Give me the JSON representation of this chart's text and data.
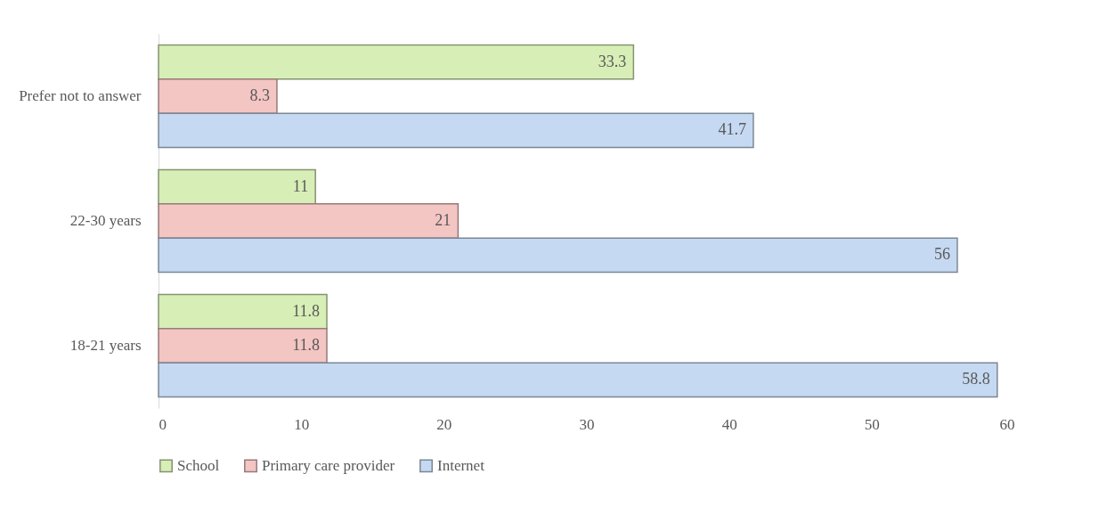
{
  "chart_data": {
    "type": "bar",
    "orientation": "horizontal",
    "categories": [
      "Prefer not to answer",
      "22-30 years",
      "18-21 years"
    ],
    "series": [
      {
        "name": "School",
        "color": "#d7eeb6",
        "values": [
          33.3,
          11,
          11.8
        ]
      },
      {
        "name": "Primary care provider",
        "color": "#f3c5c3",
        "values": [
          8.3,
          21,
          11.8
        ]
      },
      {
        "name": "Internet",
        "color": "#c6d9f2",
        "values": [
          41.7,
          56,
          58.8
        ]
      }
    ],
    "xlim": [
      0,
      60
    ],
    "xticks": [
      0,
      10,
      20,
      30,
      40,
      50,
      60
    ],
    "grid": false,
    "data_labels": true,
    "legend": "bottom"
  }
}
